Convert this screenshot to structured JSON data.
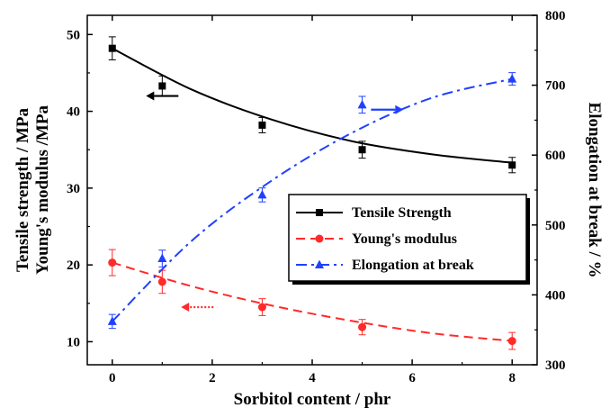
{
  "chart_data": {
    "type": "line",
    "xlabel": "Sorbitol content / phr",
    "ylabel_left": [
      "Tensile strength / MPa",
      "Young's modulus /MPa"
    ],
    "ylabel_right": "Elongation at break / %",
    "xlim": [
      -0.5,
      8.5
    ],
    "xticks": [
      0,
      2,
      4,
      6,
      8
    ],
    "ylim_left": [
      7,
      52.5
    ],
    "yticks_left": [
      10,
      20,
      30,
      40,
      50
    ],
    "ylim_right": [
      300,
      800
    ],
    "yticks_right": [
      300,
      400,
      500,
      600,
      700,
      800
    ],
    "legend_position": "center-right",
    "series": [
      {
        "name": "Tensile Strength",
        "axis": "left",
        "color": "#000000",
        "line_style": "solid",
        "marker": "square",
        "x": [
          0,
          1,
          3,
          5,
          8
        ],
        "y": [
          48.2,
          43.3,
          38.2,
          35.0,
          33.0
        ],
        "error": [
          1.5,
          1.3,
          1.0,
          1.1,
          1.0
        ],
        "fit": [
          48.2,
          42.8,
          38.9,
          36.1,
          34.4,
          33.3
        ]
      },
      {
        "name": "Young's modulus",
        "axis": "left",
        "color": "#ff2a2a",
        "line_style": "dashed",
        "marker": "circle",
        "x": [
          0,
          1,
          3,
          5,
          8
        ],
        "y": [
          20.3,
          17.8,
          14.5,
          11.9,
          10.1
        ],
        "error": [
          1.7,
          1.5,
          1.1,
          1.0,
          1.1
        ],
        "fit": [
          20.3,
          17.2,
          14.7,
          12.7,
          11.1,
          10.1
        ]
      },
      {
        "name": "Elongation at break",
        "axis": "right",
        "color": "#2040ff",
        "line_style": "dashdot",
        "marker": "triangle",
        "x": [
          0,
          1,
          3,
          5,
          8
        ],
        "y": [
          362,
          452,
          543,
          672,
          709
        ],
        "error": [
          10,
          12,
          10,
          12,
          9
        ],
        "fit": [
          362,
          478,
          564,
          632,
          682,
          709
        ]
      }
    ],
    "fit_x": [
      0,
      1.6,
      3.2,
      4.8,
      6.4,
      8
    ],
    "annotations": [
      {
        "kind": "arrow",
        "direction": "left",
        "color": "#000000",
        "style": "solid",
        "x": 1,
        "y": 42,
        "axis": "left"
      },
      {
        "kind": "arrow",
        "direction": "left",
        "color": "#ff2a2a",
        "style": "dotted",
        "x": 1.7,
        "y": 14.5,
        "axis": "left"
      },
      {
        "kind": "arrow",
        "direction": "right",
        "color": "#2040ff",
        "style": "solid",
        "x": 5.5,
        "y": 665,
        "axis": "right"
      }
    ]
  }
}
